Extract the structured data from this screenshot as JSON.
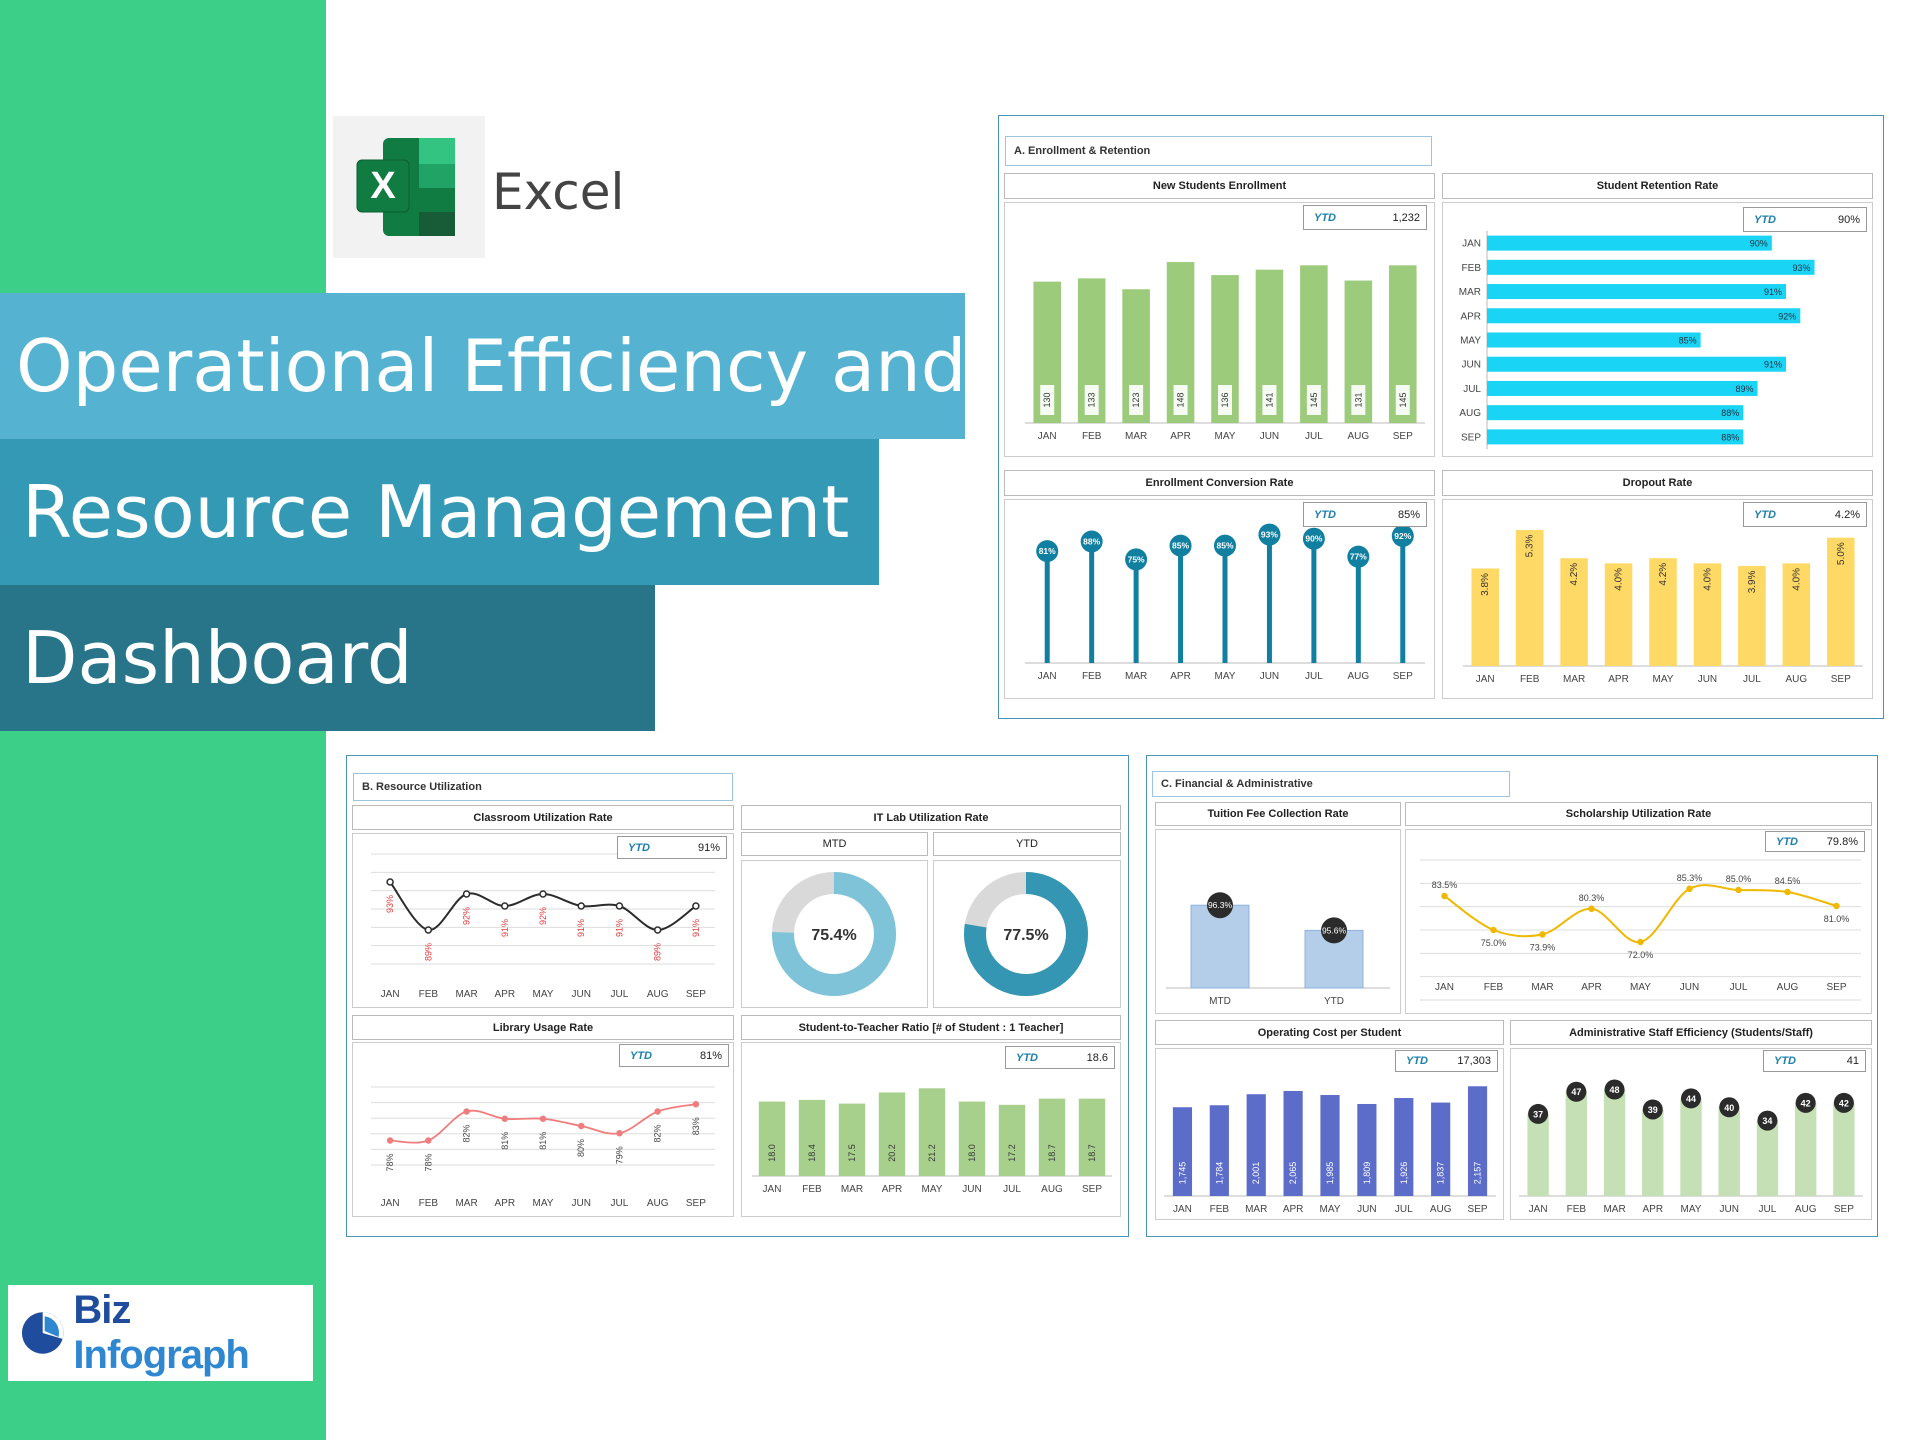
{
  "hero": {
    "app_name": "Excel",
    "excel_letter": "X",
    "title_line1": "Operational Efficiency and",
    "title_line2": "Resource Management",
    "title_line3": "Dashboard",
    "brand_biz": "Biz",
    "brand_infograph": "Infograph"
  },
  "colors": {
    "green_strip": "#3ccf87",
    "band1": "#55b3d1",
    "band2": "#3499b5",
    "band3": "#28758a",
    "bar_green": "#9dcb7c",
    "cyan": "#19d4f4",
    "teal": "#107fa0",
    "yellow": "#ffd966",
    "blue_bar": "#5c6cc9",
    "light_blue": "#b4cde9"
  },
  "ytd_label": "YTD",
  "sections": {
    "a": "A. Enrollment & Retention",
    "b": "B. Resource Utilization",
    "c": "C. Financial & Administrative"
  },
  "chart_data": [
    {
      "id": "new_students",
      "type": "bar",
      "title": "New Students Enrollment",
      "ytd": "1,232",
      "categories": [
        "JAN",
        "FEB",
        "MAR",
        "APR",
        "MAY",
        "JUN",
        "JUL",
        "AUG",
        "SEP"
      ],
      "values": [
        130,
        133,
        123,
        148,
        136,
        141,
        145,
        131,
        145
      ],
      "labels": [
        "130",
        "133",
        "123",
        "148",
        "136",
        "141",
        "145",
        "131",
        "145"
      ],
      "ylim": [
        0,
        160
      ]
    },
    {
      "id": "retention",
      "type": "bar",
      "orientation": "horizontal",
      "title": "Student Retention Rate",
      "ytd": "90%",
      "categories": [
        "JAN",
        "FEB",
        "MAR",
        "APR",
        "MAY",
        "JUN",
        "JUL",
        "AUG",
        "SEP"
      ],
      "values": [
        90,
        93,
        91,
        92,
        85,
        91,
        89,
        88,
        88
      ],
      "labels": [
        "90%",
        "93%",
        "91%",
        "92%",
        "85%",
        "91%",
        "89%",
        "88%",
        "88%"
      ],
      "ylim": [
        70,
        95
      ]
    },
    {
      "id": "conversion",
      "type": "scatter",
      "style": "lollipop",
      "title": "Enrollment Conversion Rate",
      "ytd": "85%",
      "categories": [
        "JAN",
        "FEB",
        "MAR",
        "APR",
        "MAY",
        "JUN",
        "JUL",
        "AUG",
        "SEP"
      ],
      "values": [
        81,
        88,
        75,
        85,
        85,
        93,
        90,
        77,
        92
      ],
      "labels": [
        "81%",
        "88%",
        "75%",
        "85%",
        "85%",
        "93%",
        "90%",
        "77%",
        "92%"
      ],
      "ylim": [
        0,
        105
      ]
    },
    {
      "id": "dropout",
      "type": "bar",
      "title": "Dropout Rate",
      "ytd": "4.2%",
      "categories": [
        "JAN",
        "FEB",
        "MAR",
        "APR",
        "MAY",
        "JUN",
        "JUL",
        "AUG",
        "SEP"
      ],
      "values": [
        3.8,
        5.3,
        4.2,
        4.0,
        4.2,
        4.0,
        3.9,
        4.0,
        5.0
      ],
      "labels": [
        "3.8%",
        "5.3%",
        "4.2%",
        "4.0%",
        "4.2%",
        "4.0%",
        "3.9%",
        "4.0%",
        "5.0%"
      ],
      "ylim": [
        0,
        6
      ]
    },
    {
      "id": "classroom",
      "type": "line",
      "title": "Classroom Utilization Rate",
      "ytd": "91%",
      "categories": [
        "JAN",
        "FEB",
        "MAR",
        "APR",
        "MAY",
        "JUN",
        "JUL",
        "AUG",
        "SEP"
      ],
      "values": [
        93,
        89,
        92,
        91,
        92,
        91,
        91,
        89,
        91
      ],
      "labels": [
        "93%",
        "89%",
        "92%",
        "91%",
        "92%",
        "91%",
        "91%",
        "89%",
        "91%"
      ],
      "ylim": [
        87,
        94.5
      ]
    },
    {
      "id": "it_lab",
      "type": "pie",
      "style": "donut",
      "title": "IT Lab Utilization Rate",
      "mtd_label": "MTD",
      "ytd_label": "YTD",
      "mtd_value": 75.4,
      "ytd_value": 77.5,
      "mtd_text": "75.4%",
      "ytd_text": "77.5%"
    },
    {
      "id": "library",
      "type": "line",
      "title": "Library Usage Rate",
      "ytd": "81%",
      "categories": [
        "JAN",
        "FEB",
        "MAR",
        "APR",
        "MAY",
        "JUN",
        "JUL",
        "AUG",
        "SEP"
      ],
      "values": [
        78,
        78,
        82,
        81,
        81,
        80,
        79,
        82,
        83
      ],
      "labels": [
        "78%",
        "78%",
        "82%",
        "81%",
        "81%",
        "80%",
        "79%",
        "82%",
        "83%"
      ],
      "ylim": [
        76,
        84
      ]
    },
    {
      "id": "ratio",
      "type": "bar",
      "title": "Student-to-Teacher Ratio [# of Student : 1 Teacher]",
      "ytd": "18.6",
      "categories": [
        "JAN",
        "FEB",
        "MAR",
        "APR",
        "MAY",
        "JUN",
        "JUL",
        "AUG",
        "SEP"
      ],
      "values": [
        18.0,
        18.4,
        17.5,
        20.2,
        21.2,
        18.0,
        17.2,
        18.7,
        18.7
      ],
      "labels": [
        "18.0",
        "18.4",
        "17.5",
        "20.2",
        "21.2",
        "18.0",
        "17.2",
        "18.7",
        "18.7"
      ],
      "ylim": [
        0,
        22
      ]
    },
    {
      "id": "tuition",
      "type": "bar",
      "title": "Tuition Fee Collection Rate",
      "categories": [
        "MTD",
        "YTD"
      ],
      "values": [
        96.3,
        95.6
      ],
      "labels": [
        "96.3%",
        "95.6%"
      ],
      "ylim": [
        94,
        97
      ]
    },
    {
      "id": "scholarship",
      "type": "line",
      "title": "Scholarship Utilization Rate",
      "ytd": "79.8%",
      "categories": [
        "JAN",
        "FEB",
        "MAR",
        "APR",
        "MAY",
        "JUN",
        "JUL",
        "AUG",
        "SEP"
      ],
      "values": [
        83.5,
        75.0,
        73.9,
        80.3,
        72.0,
        85.3,
        85.0,
        84.5,
        81.0
      ],
      "labels": [
        "83.5%",
        "75.0%",
        "73.9%",
        "80.3%",
        "72.0%",
        "85.3%",
        "85.0%",
        "84.5%",
        "81.0%"
      ],
      "ylim": [
        60,
        90
      ]
    },
    {
      "id": "op_cost",
      "type": "bar",
      "title": "Operating Cost per Student",
      "ytd": "17,303",
      "categories": [
        "JAN",
        "FEB",
        "MAR",
        "APR",
        "MAY",
        "JUN",
        "JUL",
        "AUG",
        "SEP"
      ],
      "values": [
        1745,
        1784,
        2001,
        2065,
        1985,
        1809,
        1926,
        1837,
        2157
      ],
      "labels": [
        "1,745",
        "1,784",
        "2,001",
        "2,065",
        "1,985",
        "1,809",
        "1,926",
        "1,837",
        "2,157"
      ],
      "ylim": [
        0,
        2300
      ]
    },
    {
      "id": "admin",
      "type": "bar",
      "title": "Administrative Staff Efficiency (Students/Staff)",
      "ytd": "41",
      "categories": [
        "JAN",
        "FEB",
        "MAR",
        "APR",
        "MAY",
        "JUN",
        "JUL",
        "AUG",
        "SEP"
      ],
      "values": [
        37,
        47,
        48,
        39,
        44,
        40,
        34,
        42,
        42
      ],
      "labels": [
        "37",
        "47",
        "48",
        "39",
        "44",
        "40",
        "34",
        "42",
        "42"
      ],
      "ylim": [
        0,
        55
      ]
    }
  ]
}
